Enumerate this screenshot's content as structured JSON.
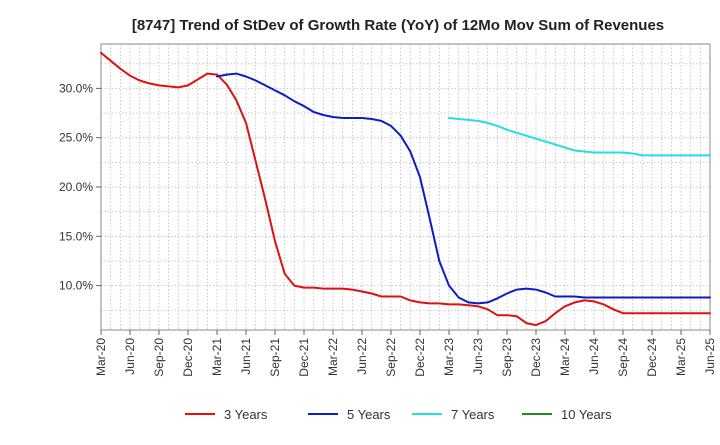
{
  "chart_data": {
    "type": "line",
    "title": "[8747]  Trend of StDev of Growth Rate (YoY) of 12Mo Mov Sum of Revenues",
    "xlabel": "",
    "ylabel": "",
    "ylim": [
      5.5,
      34.5
    ],
    "y_ticks": [
      10,
      15,
      20,
      25,
      30
    ],
    "y_tick_labels": [
      "10.0%",
      "15.0%",
      "20.0%",
      "25.0%",
      "30.0%"
    ],
    "x_tick_labels": [
      "Mar-20",
      "Jun-20",
      "Sep-20",
      "Dec-20",
      "Mar-21",
      "Jun-21",
      "Sep-21",
      "Dec-21",
      "Mar-22",
      "Jun-22",
      "Sep-22",
      "Dec-22",
      "Mar-23",
      "Jun-23",
      "Sep-23",
      "Dec-23",
      "Mar-24",
      "Jun-24",
      "Sep-24",
      "Dec-24",
      "Mar-25",
      "Jun-25"
    ],
    "x_range_months": [
      0,
      63
    ],
    "grid": true,
    "legend_position": "bottom",
    "series": [
      {
        "name": "3 Years",
        "color": "#dd1111",
        "x": [
          0,
          1,
          2,
          3,
          4,
          5,
          6,
          7,
          8,
          9,
          10,
          11,
          12,
          13,
          14,
          15,
          16,
          17,
          18,
          19,
          20,
          21,
          22,
          23,
          24,
          25,
          26,
          27,
          28,
          29,
          30,
          31,
          32,
          33,
          34,
          35,
          36,
          37,
          38,
          39,
          40,
          41,
          42,
          43,
          44,
          45,
          46,
          47,
          48,
          49,
          50,
          51,
          52,
          53,
          54,
          55,
          56,
          57,
          58,
          59,
          60,
          61,
          62,
          63
        ],
        "values": [
          33.6,
          32.8,
          32.0,
          31.3,
          30.8,
          30.5,
          30.3,
          30.2,
          30.1,
          30.3,
          30.9,
          31.5,
          31.4,
          30.4,
          28.8,
          26.5,
          22.6,
          18.7,
          14.5,
          11.2,
          10.0,
          9.8,
          9.8,
          9.7,
          9.7,
          9.7,
          9.6,
          9.4,
          9.2,
          8.9,
          8.9,
          8.9,
          8.5,
          8.3,
          8.2,
          8.2,
          8.1,
          8.1,
          8.0,
          7.9,
          7.6,
          7.0,
          7.0,
          6.9,
          6.2,
          6.0,
          6.4,
          7.2,
          7.9,
          8.3,
          8.5,
          8.4,
          8.1,
          7.6,
          7.2,
          7.2,
          7.2,
          7.2,
          7.2,
          7.2,
          7.2,
          7.2,
          7.2,
          7.2
        ]
      },
      {
        "name": "5 Years",
        "color": "#0a1ec8",
        "x": [
          12,
          13,
          14,
          15,
          16,
          17,
          18,
          19,
          20,
          21,
          22,
          23,
          24,
          25,
          26,
          27,
          28,
          29,
          30,
          31,
          32,
          33,
          34,
          35,
          36,
          37,
          38,
          39,
          40,
          41,
          42,
          43,
          44,
          45,
          46,
          47,
          48,
          49,
          50,
          51,
          52,
          53,
          54,
          55,
          56,
          57,
          58,
          59,
          60,
          61,
          62,
          63
        ],
        "values": [
          31.2,
          31.4,
          31.5,
          31.2,
          30.8,
          30.3,
          29.8,
          29.3,
          28.7,
          28.2,
          27.6,
          27.3,
          27.1,
          27.0,
          27.0,
          27.0,
          26.9,
          26.7,
          26.2,
          25.2,
          23.6,
          21.0,
          16.8,
          12.5,
          10.0,
          8.8,
          8.3,
          8.2,
          8.3,
          8.7,
          9.2,
          9.6,
          9.7,
          9.6,
          9.3,
          8.9,
          8.9,
          8.9,
          8.8,
          8.8,
          8.8,
          8.8,
          8.8,
          8.8,
          8.8,
          8.8,
          8.8,
          8.8,
          8.8,
          8.8,
          8.8,
          8.8
        ]
      },
      {
        "name": "7 Years",
        "color": "#22e0e0",
        "x": [
          36,
          37,
          38,
          39,
          40,
          41,
          42,
          43,
          44,
          45,
          46,
          47,
          48,
          49,
          50,
          51,
          52,
          53,
          54,
          55,
          56,
          57,
          58,
          59,
          60,
          61,
          62,
          63
        ],
        "values": [
          27.0,
          26.9,
          26.8,
          26.7,
          26.5,
          26.2,
          25.8,
          25.5,
          25.2,
          24.9,
          24.6,
          24.3,
          24.0,
          23.7,
          23.6,
          23.5,
          23.5,
          23.5,
          23.5,
          23.4,
          23.2,
          23.2,
          23.2,
          23.2,
          23.2,
          23.2,
          23.2,
          23.2
        ]
      },
      {
        "name": "10 Years",
        "color": "#228b22",
        "x": [],
        "values": []
      }
    ]
  }
}
